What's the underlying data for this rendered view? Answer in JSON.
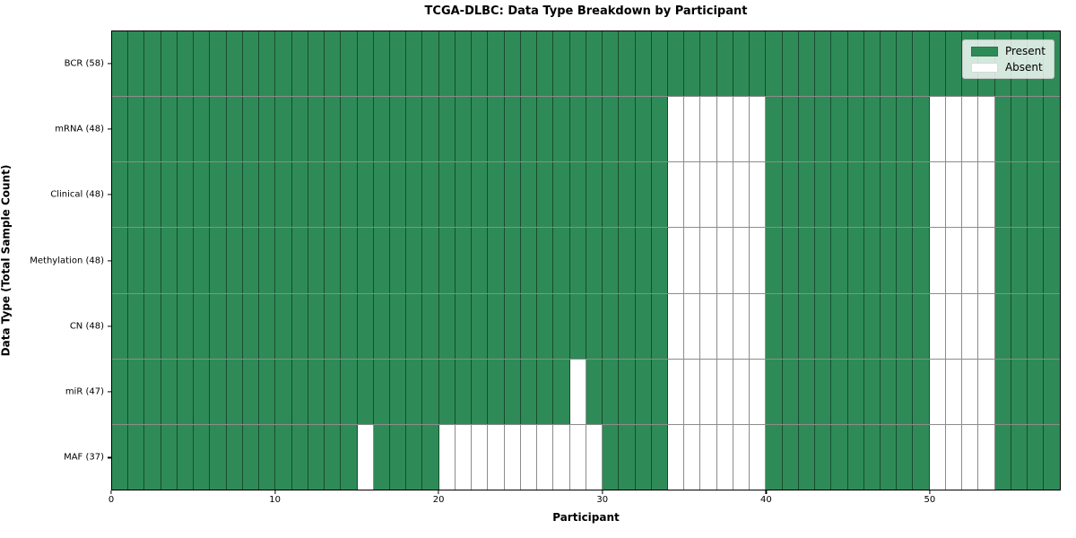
{
  "chart_data": {
    "type": "heatmap",
    "title": "TCGA-DLBC: Data Type Breakdown by Participant",
    "xlabel": "Participant",
    "ylabel": "Data Type (Total Sample Count)",
    "n_participants": 58,
    "x_range": [
      0,
      58
    ],
    "x_ticks": [
      0,
      10,
      20,
      30,
      40,
      50
    ],
    "grid": false,
    "legend": {
      "position": "upper right",
      "entries": [
        {
          "label": "Present",
          "color": "#2e8b57"
        },
        {
          "label": "Absent",
          "color": "#ffffff"
        }
      ]
    },
    "colors": {
      "present": "#2e8b57",
      "absent": "#ffffff",
      "cell_edge": "rgba(0,0,0,0.45)",
      "plot_border": "#000000"
    },
    "rows": [
      {
        "label": "BCR (58)",
        "data_type": "BCR",
        "present_count": 58,
        "absent_participants": []
      },
      {
        "label": "mRNA (48)",
        "data_type": "mRNA",
        "present_count": 48,
        "absent_participants": [
          34,
          35,
          36,
          37,
          38,
          39,
          50,
          51,
          52,
          53
        ]
      },
      {
        "label": "Clinical (48)",
        "data_type": "Clinical",
        "present_count": 48,
        "absent_participants": [
          34,
          35,
          36,
          37,
          38,
          39,
          50,
          51,
          52,
          53
        ]
      },
      {
        "label": "Methylation (48)",
        "data_type": "Methylation",
        "present_count": 48,
        "absent_participants": [
          34,
          35,
          36,
          37,
          38,
          39,
          50,
          51,
          52,
          53
        ]
      },
      {
        "label": "CN (48)",
        "data_type": "CN",
        "present_count": 48,
        "absent_participants": [
          34,
          35,
          36,
          37,
          38,
          39,
          50,
          51,
          52,
          53
        ]
      },
      {
        "label": "miR (47)",
        "data_type": "miR",
        "present_count": 47,
        "absent_participants": [
          28,
          34,
          35,
          36,
          37,
          38,
          39,
          50,
          51,
          52,
          53
        ]
      },
      {
        "label": "MAF (37)",
        "data_type": "MAF",
        "present_count": 37,
        "absent_participants": [
          15,
          20,
          21,
          22,
          23,
          24,
          25,
          26,
          27,
          28,
          29,
          34,
          35,
          36,
          37,
          38,
          39,
          50,
          51,
          52,
          53
        ]
      }
    ]
  }
}
